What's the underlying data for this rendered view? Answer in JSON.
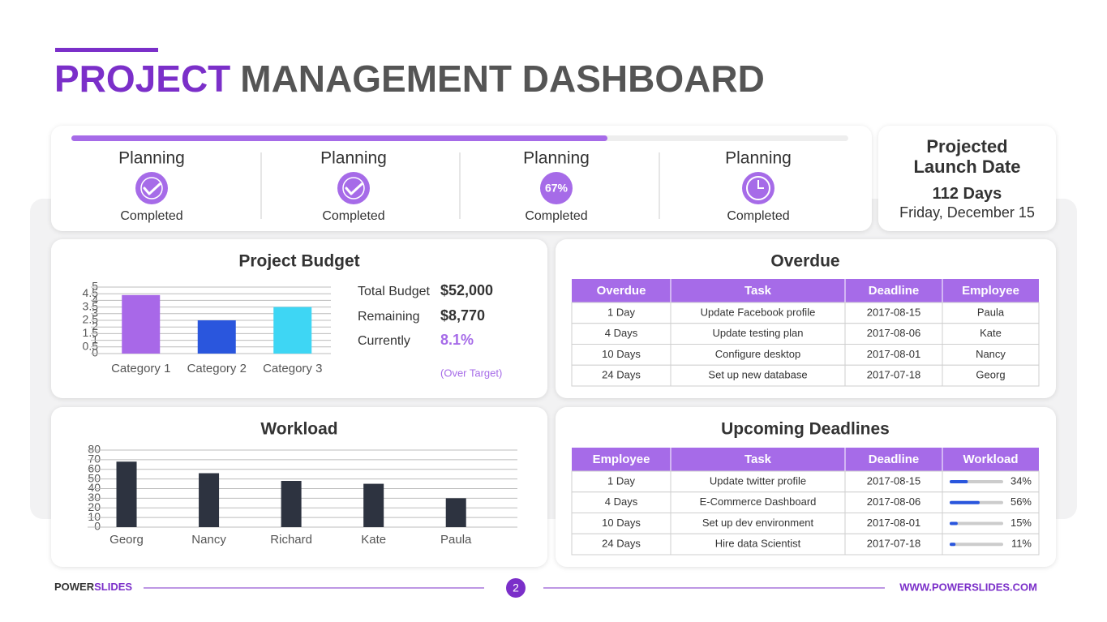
{
  "header": {
    "title_accent": "PROJECT",
    "title_rest": "MANAGEMENT DASHBOARD"
  },
  "progress": {
    "value": 69,
    "xlim": [
      0,
      100
    ]
  },
  "stages": [
    {
      "title": "Planning",
      "icon": "check",
      "status": "Completed"
    },
    {
      "title": "Planning",
      "icon": "check",
      "status": "Completed"
    },
    {
      "title": "Planning",
      "icon": "badge",
      "badge": "67%",
      "status": "Completed"
    },
    {
      "title": "Planning",
      "icon": "clock",
      "status": "Completed"
    }
  ],
  "launch": {
    "title": "Projected Launch Date",
    "days": "112 Days",
    "date": "Friday, December 15"
  },
  "budget": {
    "title": "Project Budget",
    "stats": [
      {
        "label": "Total Budget",
        "value": "$52,000"
      },
      {
        "label": "Remaining",
        "value": "$8,770"
      },
      {
        "label": "Currently",
        "value": "8.1%"
      }
    ],
    "note": "(Over Target)"
  },
  "workload": {
    "title": "Workload"
  },
  "chart_data": [
    {
      "type": "bar",
      "categories": [
        "Category 1",
        "Category 2",
        "Category 3"
      ],
      "values": [
        4.4,
        2.5,
        3.5
      ],
      "colors": [
        "#a868e8",
        "#2a56dd",
        "#3ed6f4"
      ],
      "ylim": [
        0,
        5
      ],
      "yticks": [
        0,
        0.5,
        1,
        1.5,
        2,
        2.5,
        3,
        3.5,
        4,
        4.5,
        5
      ],
      "grid": true
    },
    {
      "type": "bar",
      "categories": [
        "Georg",
        "Nancy",
        "Richard",
        "Kate",
        "Paula"
      ],
      "values": [
        68,
        56,
        48,
        45,
        30
      ],
      "color": "#2d3340",
      "ylim": [
        0,
        80
      ],
      "yticks": [
        0,
        10,
        20,
        30,
        40,
        50,
        60,
        70,
        80
      ],
      "grid": true
    }
  ],
  "overdue": {
    "title": "Overdue",
    "columns": [
      "Overdue",
      "Task",
      "Deadline",
      "Employee"
    ],
    "rows": [
      [
        "1 Day",
        "Update Facebook profile",
        "2017-08-15",
        "Paula"
      ],
      [
        "4 Days",
        "Update testing plan",
        "2017-08-06",
        "Kate"
      ],
      [
        "10 Days",
        "Configure desktop",
        "2017-08-01",
        "Nancy"
      ],
      [
        "24 Days",
        "Set up new database",
        "2017-07-18",
        "Georg"
      ]
    ]
  },
  "upcoming": {
    "title": "Upcoming Deadlines",
    "columns": [
      "Employee",
      "Task",
      "Deadline",
      "Workload"
    ],
    "xlim": [
      0,
      100
    ],
    "rows": [
      [
        "1 Day",
        "Update twitter profile",
        "2017-08-15",
        {
          "value": 34,
          "label": "34%"
        }
      ],
      [
        "4 Days",
        "E-Commerce Dashboard",
        "2017-08-06",
        {
          "value": 56,
          "label": "56%"
        }
      ],
      [
        "10 Days",
        "Set up dev environment",
        "2017-08-01",
        {
          "value": 15,
          "label": "15%"
        }
      ],
      [
        "24 Days",
        "Hire data Scientist",
        "2017-07-18",
        {
          "value": 11,
          "label": "11%"
        }
      ]
    ]
  },
  "footer": {
    "brand_a": "POWER",
    "brand_b": "SLIDES",
    "page": "2",
    "url": "WWW.POWERSLIDES.COM"
  }
}
